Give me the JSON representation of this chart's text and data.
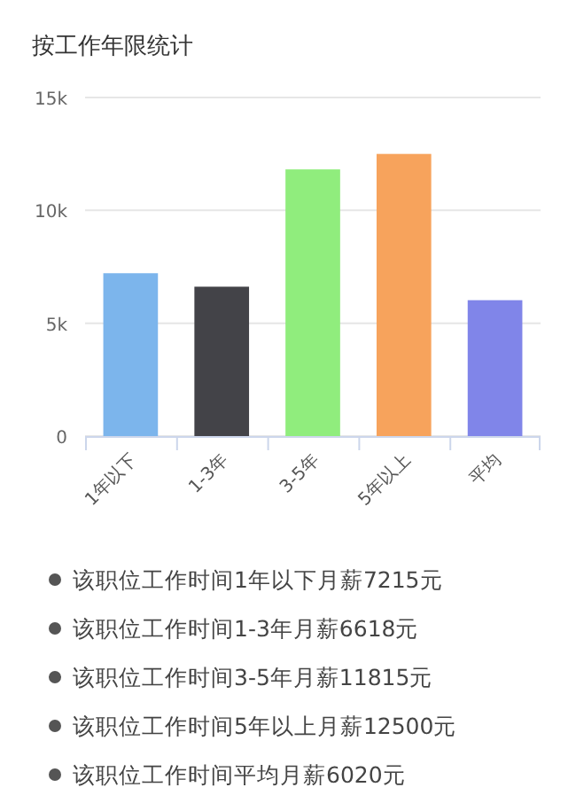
{
  "chart_data": {
    "type": "bar",
    "title": "按工作年限统计",
    "categories": [
      "1年以下",
      "1-3年",
      "3-5年",
      "5年以上",
      "平均"
    ],
    "values": [
      7215,
      6618,
      11815,
      12500,
      6020
    ],
    "colors": [
      "#7cb5ec",
      "#434348",
      "#90ed7d",
      "#f7a35c",
      "#8085e9"
    ],
    "ylim": [
      0,
      15000
    ],
    "yticks": [
      0,
      {
        "value": 5000,
        "label": "5k"
      },
      {
        "value": 10000,
        "label": "10k"
      },
      {
        "value": 15000,
        "label": "15k"
      }
    ],
    "grid": "y",
    "annotations": [
      "该职位工作时间1年以下月薪7215元",
      "该职位工作时间1-3年月薪6618元",
      "该职位工作时间3-5年月薪11815元",
      "该职位工作时间5年以上月薪12500元",
      "该职位工作时间平均月薪6020元"
    ]
  }
}
